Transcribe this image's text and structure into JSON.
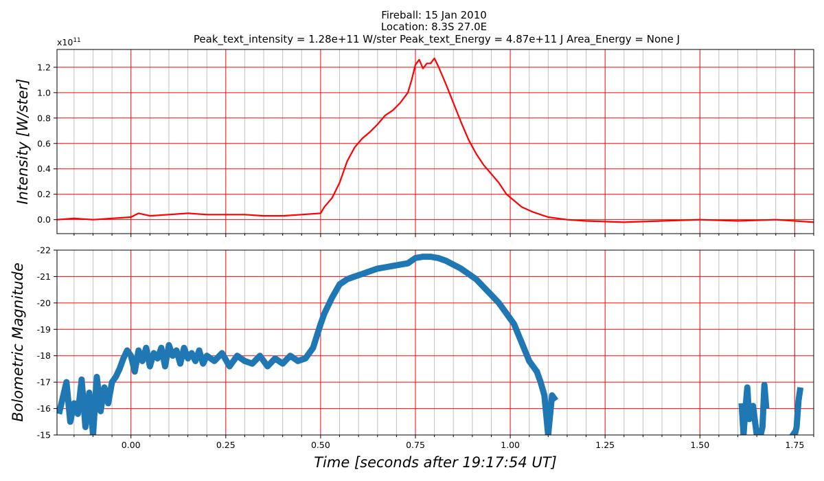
{
  "title_lines": [
    "Fireball: 15 Jan 2010",
    "Location: 8.3S  27.0E",
    "Peak_text_intensity = 1.28e+11 W/ster       Peak_text_Energy = 4.87e+11 J       Area_Energy = None J"
  ],
  "colors": {
    "intensity_line": "#ff0000",
    "magnitude_line": "#1f77b4",
    "major_grid": "#ff0000",
    "minor_grid": "#c0c0c0"
  },
  "chart_data": [
    {
      "type": "line",
      "ylabel": "Intensity [W/ster]",
      "y_scale_label": {
        "base": "x10",
        "exponent": "11"
      },
      "xlim": [
        -0.195,
        1.8
      ],
      "ylim": [
        -0.11,
        1.34
      ],
      "xticks": [
        0.0,
        0.25,
        0.5,
        0.75,
        1.0,
        1.25,
        1.5,
        1.75
      ],
      "yticks": [
        0.0,
        0.2,
        0.4,
        0.6,
        0.8,
        1.0,
        1.2
      ],
      "ytick_labels": [
        "0.0",
        "0.2",
        "0.4",
        "0.6",
        "0.8",
        "1.0",
        "1.2"
      ],
      "grid": "major red, minor gray vertical every 0.05 s",
      "x": [
        -0.195,
        -0.15,
        -0.1,
        -0.05,
        0.0,
        0.02,
        0.05,
        0.1,
        0.15,
        0.2,
        0.25,
        0.3,
        0.35,
        0.4,
        0.45,
        0.5,
        0.51,
        0.53,
        0.55,
        0.57,
        0.59,
        0.61,
        0.63,
        0.65,
        0.67,
        0.69,
        0.71,
        0.73,
        0.74,
        0.75,
        0.76,
        0.77,
        0.78,
        0.79,
        0.8,
        0.81,
        0.83,
        0.85,
        0.87,
        0.89,
        0.91,
        0.93,
        0.95,
        0.97,
        0.99,
        1.01,
        1.03,
        1.06,
        1.1,
        1.15,
        1.2,
        1.3,
        1.4,
        1.5,
        1.6,
        1.7,
        1.8
      ],
      "y": [
        0.0,
        0.01,
        0.0,
        0.01,
        0.02,
        0.05,
        0.03,
        0.04,
        0.05,
        0.04,
        0.04,
        0.04,
        0.03,
        0.03,
        0.04,
        0.05,
        0.1,
        0.17,
        0.29,
        0.46,
        0.57,
        0.64,
        0.69,
        0.75,
        0.82,
        0.86,
        0.92,
        1.0,
        1.1,
        1.22,
        1.26,
        1.19,
        1.23,
        1.23,
        1.27,
        1.21,
        1.07,
        0.92,
        0.77,
        0.63,
        0.52,
        0.43,
        0.36,
        0.29,
        0.2,
        0.15,
        0.1,
        0.06,
        0.02,
        0.0,
        -0.01,
        -0.02,
        -0.01,
        0.0,
        -0.01,
        0.0,
        -0.02
      ]
    },
    {
      "type": "line",
      "ylabel": "Bolometric Magnitude",
      "xlabel": "Time [seconds after 19:17:54 UT]",
      "xlim": [
        -0.195,
        1.8
      ],
      "ylim": [
        -15,
        -22
      ],
      "xticks": [
        0.0,
        0.25,
        0.5,
        0.75,
        1.0,
        1.25,
        1.5,
        1.75
      ],
      "xtick_labels": [
        "0.00",
        "0.25",
        "0.50",
        "0.75",
        "1.00",
        "1.25",
        "1.50",
        "1.75"
      ],
      "yticks": [
        -22,
        -21,
        -20,
        -19,
        -18,
        -17,
        -16,
        -15
      ],
      "grid": "major red, minor gray vertical every 0.05 s",
      "segments": [
        {
          "x": [
            -0.19,
            -0.17,
            -0.16,
            -0.15,
            -0.14,
            -0.13,
            -0.12,
            -0.11,
            -0.1,
            -0.09,
            -0.08,
            -0.07,
            -0.06,
            -0.05,
            -0.04,
            -0.03,
            -0.02,
            -0.01,
            0.0,
            0.01,
            0.02,
            0.03,
            0.04,
            0.05,
            0.06,
            0.07,
            0.08,
            0.09,
            0.1,
            0.11,
            0.12,
            0.13,
            0.14,
            0.15,
            0.16,
            0.17,
            0.18,
            0.19,
            0.2,
            0.22,
            0.24,
            0.26,
            0.28,
            0.3,
            0.32,
            0.34,
            0.36,
            0.38,
            0.4,
            0.42,
            0.44,
            0.46,
            0.48,
            0.5,
            0.51,
            0.52,
            0.53,
            0.55,
            0.57,
            0.59,
            0.61,
            0.63,
            0.65,
            0.67,
            0.69,
            0.71,
            0.73,
            0.75,
            0.77,
            0.79,
            0.81,
            0.83,
            0.85,
            0.87,
            0.89,
            0.91,
            0.93,
            0.95,
            0.97,
            0.99,
            1.01,
            1.03,
            1.05,
            1.07,
            1.08,
            1.09,
            1.1,
            1.11,
            1.12
          ],
          "y": [
            -15.8,
            -17.0,
            -15.5,
            -16.2,
            -15.8,
            -17.1,
            -15.3,
            -16.6,
            -15.0,
            -17.2,
            -15.9,
            -16.8,
            -16.2,
            -17.0,
            -17.2,
            -17.5,
            -17.9,
            -18.2,
            -18.0,
            -17.4,
            -18.2,
            -17.8,
            -18.3,
            -17.6,
            -18.1,
            -17.9,
            -18.3,
            -17.6,
            -18.4,
            -18.0,
            -18.2,
            -17.7,
            -18.3,
            -17.9,
            -18.1,
            -17.8,
            -18.2,
            -17.7,
            -18.0,
            -17.8,
            -18.1,
            -17.6,
            -18.0,
            -17.8,
            -17.7,
            -18.0,
            -17.6,
            -17.9,
            -17.7,
            -18.0,
            -17.8,
            -17.9,
            -18.3,
            -19.2,
            -19.6,
            -19.9,
            -20.2,
            -20.7,
            -20.9,
            -21.0,
            -21.1,
            -21.2,
            -21.3,
            -21.35,
            -21.4,
            -21.45,
            -21.5,
            -21.7,
            -21.75,
            -21.75,
            -21.7,
            -21.6,
            -21.45,
            -21.3,
            -21.1,
            -20.9,
            -20.6,
            -20.3,
            -20.0,
            -19.6,
            -19.2,
            -18.5,
            -17.8,
            -17.4,
            -17.0,
            -16.5,
            -15.0,
            -16.5,
            -16.3
          ]
        },
        {
          "x": [
            1.61,
            1.615,
            1.62,
            1.625,
            1.63,
            1.64,
            1.65,
            1.66,
            1.665,
            1.67,
            1.675
          ],
          "y": [
            -16.2,
            -15.0,
            -16.0,
            -16.8,
            -15.6,
            -16.1,
            -15.0,
            -15.0,
            -15.3,
            -16.9,
            -16.0
          ]
        },
        {
          "x": [
            1.74,
            1.75,
            1.755,
            1.76,
            1.765
          ],
          "y": [
            -15.1,
            -15.0,
            -15.3,
            -16.3,
            -16.8
          ]
        }
      ]
    }
  ]
}
